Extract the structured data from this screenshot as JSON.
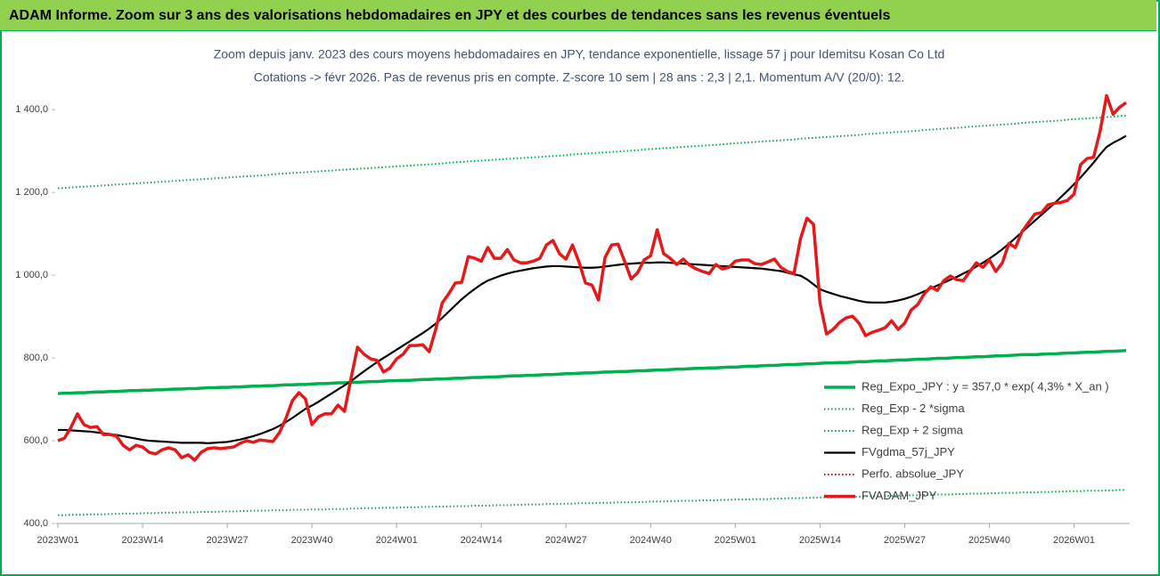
{
  "chart_data": {
    "type": "line",
    "title": "ADAM Informe. Zoom sur 3 ans des valorisations hebdomadaires en JPY et des courbes de tendances sans les revenus éventuels",
    "subtitle": [
      "Zoom depuis janv. 2023 des cours moyens hebdomadaires en JPY, tendance exponentielle, lissage 57 j pour Idemitsu Kosan Co Ltd",
      "Cotations -> févr 2026. Pas de revenus pris en compte. Z-score 10 sem | 28 ans : 2,3 | 2,1. Momentum A/V (20/0): 12."
    ],
    "categories": [
      "2023W01",
      null,
      null,
      null,
      null,
      null,
      null,
      null,
      null,
      null,
      null,
      null,
      null,
      "2023W14",
      null,
      null,
      null,
      null,
      null,
      null,
      null,
      null,
      null,
      null,
      null,
      null,
      "2023W27",
      null,
      null,
      null,
      null,
      null,
      null,
      null,
      null,
      null,
      null,
      null,
      null,
      "2023W40",
      null,
      null,
      null,
      null,
      null,
      null,
      null,
      null,
      null,
      null,
      null,
      null,
      "2024W01",
      null,
      null,
      null,
      null,
      null,
      null,
      null,
      null,
      null,
      null,
      null,
      null,
      "2024W14",
      null,
      null,
      null,
      null,
      null,
      null,
      null,
      null,
      null,
      null,
      null,
      null,
      "2024W27",
      null,
      null,
      null,
      null,
      null,
      null,
      null,
      null,
      null,
      null,
      null,
      null,
      "2024W40",
      null,
      null,
      null,
      null,
      null,
      null,
      null,
      null,
      null,
      null,
      null,
      null,
      "2025W01",
      null,
      null,
      null,
      null,
      null,
      null,
      null,
      null,
      null,
      null,
      null,
      null,
      "2025W14",
      null,
      null,
      null,
      null,
      null,
      null,
      null,
      null,
      null,
      null,
      null,
      null,
      "2025W27",
      null,
      null,
      null,
      null,
      null,
      null,
      null,
      null,
      null,
      null,
      null,
      null,
      "2025W40",
      null,
      null,
      null,
      null,
      null,
      null,
      null,
      null,
      null,
      null,
      null,
      null,
      "2026W01",
      null,
      null,
      null,
      null,
      null,
      null,
      null,
      null
    ],
    "ylim": [
      400,
      1450
    ],
    "yticks": [
      {
        "value": 400,
        "label": "400,0"
      },
      {
        "value": 600,
        "label": "600,0"
      },
      {
        "value": 800,
        "label": "800,0"
      },
      {
        "value": 1000,
        "label": "1 000,0"
      },
      {
        "value": 1200,
        "label": "1 200,0"
      },
      {
        "value": 1400,
        "label": "1 400,0"
      }
    ],
    "grid": false,
    "legend": "lower right",
    "series": [
      {
        "name": "Reg_Expo_JPY : y = 357,0 * exp( 4,3% *  X_an )",
        "color": "#00b050",
        "line_style": "thick",
        "values": [
          714,
          715,
          715,
          716,
          716,
          717,
          718,
          718,
          719,
          719,
          720,
          721,
          721,
          722,
          722,
          723,
          723,
          724,
          725,
          725,
          726,
          726,
          727,
          728,
          728,
          729,
          729,
          730,
          730,
          731,
          732,
          732,
          733,
          733,
          734,
          735,
          735,
          736,
          736,
          737,
          738,
          738,
          739,
          740,
          740,
          741,
          741,
          742,
          743,
          743,
          744,
          745,
          745,
          746,
          746,
          747,
          748,
          748,
          749,
          749,
          750,
          751,
          751,
          752,
          753,
          753,
          754,
          754,
          755,
          756,
          757,
          757,
          758,
          758,
          759,
          760,
          760,
          761,
          762,
          762,
          763,
          764,
          764,
          765,
          766,
          766,
          767,
          767,
          768,
          769,
          769,
          770,
          771,
          771,
          772,
          773,
          773,
          774,
          775,
          775,
          776,
          776,
          777,
          778,
          778,
          779,
          780,
          780,
          781,
          782,
          782,
          783,
          784,
          784,
          785,
          786,
          786,
          787,
          788,
          788,
          789,
          789,
          790,
          791,
          791,
          792,
          793,
          793,
          794,
          795,
          795,
          796,
          797,
          797,
          798,
          799,
          799,
          800,
          801,
          801,
          802,
          803,
          803,
          804,
          805,
          805,
          806,
          807,
          808,
          808,
          808,
          809,
          810,
          810,
          811,
          812,
          812,
          813,
          814,
          814,
          815,
          816,
          816,
          817,
          818
        ]
      },
      {
        "name": "Reg_Exp - 2 *sigma",
        "color": "#00b050",
        "line_style": "dotted",
        "values": [
          420,
          420,
          421,
          421,
          421,
          422,
          422,
          422,
          423,
          423,
          424,
          424,
          424,
          425,
          425,
          425,
          426,
          426,
          426,
          427,
          427,
          427,
          428,
          428,
          428,
          429,
          429,
          429,
          430,
          430,
          431,
          431,
          431,
          432,
          432,
          432,
          433,
          433,
          433,
          434,
          434,
          434,
          435,
          435,
          435,
          436,
          436,
          437,
          437,
          437,
          438,
          438,
          438,
          439,
          439,
          439,
          440,
          440,
          441,
          441,
          441,
          442,
          442,
          442,
          443,
          443,
          443,
          444,
          444,
          444,
          445,
          445,
          446,
          446,
          446,
          447,
          447,
          447,
          448,
          448,
          449,
          449,
          449,
          450,
          450,
          450,
          451,
          451,
          451,
          452,
          452,
          453,
          453,
          453,
          454,
          454,
          455,
          455,
          455,
          456,
          456,
          456,
          457,
          457,
          458,
          458,
          458,
          459,
          459,
          459,
          460,
          460,
          461,
          461,
          461,
          462,
          462,
          463,
          463,
          463,
          464,
          464,
          464,
          465,
          465,
          466,
          466,
          466,
          467,
          467,
          468,
          468,
          468,
          469,
          469,
          470,
          470,
          470,
          471,
          471,
          472,
          472,
          472,
          473,
          473,
          474,
          474,
          474,
          475,
          475,
          475,
          476,
          476,
          477,
          477,
          478,
          478,
          478,
          479,
          479,
          479,
          480,
          480,
          481,
          481
        ]
      },
      {
        "name": "Reg_Exp + 2 sigma",
        "color": "#00b050",
        "line_style": "dotted",
        "values": [
          1210,
          1211,
          1212,
          1213,
          1214,
          1215,
          1216,
          1217,
          1218,
          1219,
          1220,
          1221,
          1222,
          1223,
          1224,
          1225,
          1226,
          1227,
          1228,
          1229,
          1230,
          1231,
          1232,
          1233,
          1234,
          1235,
          1236,
          1237,
          1238,
          1239,
          1240,
          1241,
          1242,
          1244,
          1245,
          1246,
          1247,
          1248,
          1249,
          1250,
          1251,
          1252,
          1253,
          1254,
          1255,
          1256,
          1257,
          1258,
          1259,
          1260,
          1261,
          1262,
          1263,
          1264,
          1265,
          1266,
          1267,
          1268,
          1269,
          1270,
          1272,
          1273,
          1274,
          1275,
          1276,
          1277,
          1278,
          1279,
          1280,
          1281,
          1282,
          1283,
          1284,
          1285,
          1286,
          1287,
          1288,
          1289,
          1290,
          1292,
          1293,
          1294,
          1295,
          1296,
          1297,
          1298,
          1299,
          1300,
          1301,
          1302,
          1304,
          1305,
          1306,
          1307,
          1308,
          1309,
          1310,
          1311,
          1312,
          1313,
          1314,
          1315,
          1316,
          1318,
          1319,
          1320,
          1321,
          1322,
          1323,
          1324,
          1325,
          1326,
          1327,
          1328,
          1330,
          1331,
          1332,
          1333,
          1334,
          1335,
          1336,
          1337,
          1338,
          1339,
          1341,
          1342,
          1343,
          1344,
          1345,
          1346,
          1347,
          1348,
          1349,
          1351,
          1352,
          1353,
          1354,
          1355,
          1356,
          1357,
          1359,
          1360,
          1361,
          1362,
          1363,
          1364,
          1365,
          1366,
          1368,
          1369,
          1370,
          1371,
          1372,
          1373,
          1374,
          1376,
          1377,
          1378,
          1379,
          1380,
          1381,
          1382,
          1383,
          1385,
          1386
        ]
      },
      {
        "name": "FVgdma_57j_JPY",
        "color": "#000000",
        "line_style": "solid",
        "values": [
          626,
          626,
          625,
          624,
          623,
          622,
          620,
          618,
          616,
          614,
          611,
          608,
          605,
          602,
          600,
          599,
          598,
          597,
          596,
          595,
          595,
          595,
          595,
          594,
          595,
          596,
          597,
          600,
          603,
          607,
          611,
          616,
          622,
          628,
          636,
          645,
          655,
          666,
          677,
          685,
          694,
          704,
          714,
          724,
          734,
          744,
          756,
          768,
          779,
          790,
          800,
          810,
          820,
          830,
          840,
          850,
          860,
          871,
          883,
          897,
          912,
          927,
          942,
          955,
          967,
          978,
          987,
          993,
          999,
          1004,
          1008,
          1011,
          1014,
          1017,
          1019,
          1021,
          1022,
          1022,
          1021,
          1020,
          1019,
          1018,
          1018,
          1019,
          1021,
          1023,
          1025,
          1027,
          1028,
          1029,
          1030,
          1030,
          1031,
          1031,
          1030,
          1029,
          1028,
          1027,
          1026,
          1025,
          1024,
          1023,
          1022,
          1021,
          1020,
          1019,
          1018,
          1017,
          1016,
          1014,
          1012,
          1010,
          1006,
          1002,
          999,
          990,
          978,
          966,
          960,
          955,
          950,
          946,
          942,
          938,
          935,
          934,
          934,
          934,
          936,
          939,
          943,
          948,
          954,
          961,
          968,
          975,
          982,
          989,
          996,
          1004,
          1012,
          1021,
          1030,
          1040,
          1051,
          1063,
          1076,
          1090,
          1104,
          1118,
          1132,
          1146,
          1160,
          1174,
          1189,
          1204,
          1220,
          1236,
          1254,
          1272,
          1292,
          1310,
          1320,
          1328,
          1337
        ]
      },
      {
        "name": "Perfo. absolue_JPY",
        "color": "#ff0000",
        "line_style": "dotted",
        "values": [
          600,
          606,
          632,
          665,
          639,
          632,
          634,
          615,
          615,
          611,
          589,
          578,
          589,
          585,
          572,
          568,
          578,
          583,
          578,
          559,
          566,
          553,
          572,
          581,
          583,
          581,
          583,
          585,
          594,
          600,
          596,
          602,
          600,
          598,
          619,
          654,
          697,
          716,
          701,
          639,
          658,
          665,
          665,
          686,
          671,
          751,
          826,
          809,
          798,
          794,
          766,
          776,
          798,
          809,
          830,
          830,
          832,
          815,
          869,
          933,
          955,
          981,
          983,
          1045,
          1041,
          1034,
          1067,
          1041,
          1041,
          1062,
          1037,
          1030,
          1030,
          1034,
          1041,
          1073,
          1084,
          1052,
          1039,
          1073,
          1032,
          981,
          976,
          940,
          1043,
          1073,
          1075,
          1034,
          991,
          1006,
          1037,
          1047,
          1110,
          1052,
          1041,
          1026,
          1039,
          1024,
          1015,
          1009,
          1004,
          1026,
          1015,
          1019,
          1034,
          1037,
          1037,
          1028,
          1026,
          1032,
          1039,
          1019,
          1009,
          1004,
          1088,
          1138,
          1123,
          933,
          858,
          869,
          886,
          897,
          901,
          884,
          854,
          862,
          867,
          873,
          890,
          869,
          884,
          916,
          929,
          955,
          972,
          963,
          987,
          998,
          989,
          987,
          1009,
          1030,
          1019,
          1037,
          1009,
          1030,
          1077,
          1067,
          1105,
          1127,
          1148,
          1151,
          1170,
          1174,
          1176,
          1181,
          1196,
          1267,
          1282,
          1285,
          1348,
          1434,
          1389,
          1406,
          1417
        ]
      },
      {
        "name": "FVADAM_JPY",
        "color": "#e31a1c",
        "line_style": "thick",
        "values": [
          600,
          606,
          632,
          665,
          639,
          632,
          634,
          615,
          615,
          611,
          589,
          578,
          589,
          585,
          572,
          568,
          578,
          583,
          578,
          559,
          566,
          553,
          572,
          581,
          583,
          581,
          583,
          585,
          594,
          600,
          596,
          602,
          600,
          598,
          619,
          654,
          697,
          716,
          701,
          639,
          658,
          665,
          665,
          686,
          671,
          751,
          826,
          809,
          798,
          794,
          766,
          776,
          798,
          809,
          830,
          830,
          832,
          815,
          869,
          933,
          955,
          981,
          983,
          1045,
          1041,
          1034,
          1067,
          1041,
          1041,
          1062,
          1037,
          1030,
          1030,
          1034,
          1041,
          1073,
          1084,
          1052,
          1039,
          1073,
          1032,
          981,
          976,
          940,
          1043,
          1073,
          1075,
          1034,
          991,
          1006,
          1037,
          1047,
          1110,
          1052,
          1041,
          1026,
          1039,
          1024,
          1015,
          1009,
          1004,
          1026,
          1015,
          1019,
          1034,
          1037,
          1037,
          1028,
          1026,
          1032,
          1039,
          1019,
          1009,
          1004,
          1088,
          1138,
          1123,
          933,
          858,
          869,
          886,
          897,
          901,
          884,
          854,
          862,
          867,
          873,
          890,
          869,
          884,
          916,
          929,
          955,
          972,
          963,
          987,
          998,
          989,
          987,
          1009,
          1030,
          1019,
          1037,
          1009,
          1030,
          1077,
          1067,
          1105,
          1127,
          1148,
          1151,
          1170,
          1174,
          1176,
          1181,
          1196,
          1267,
          1282,
          1285,
          1348,
          1434,
          1389,
          1406,
          1417
        ]
      }
    ]
  }
}
